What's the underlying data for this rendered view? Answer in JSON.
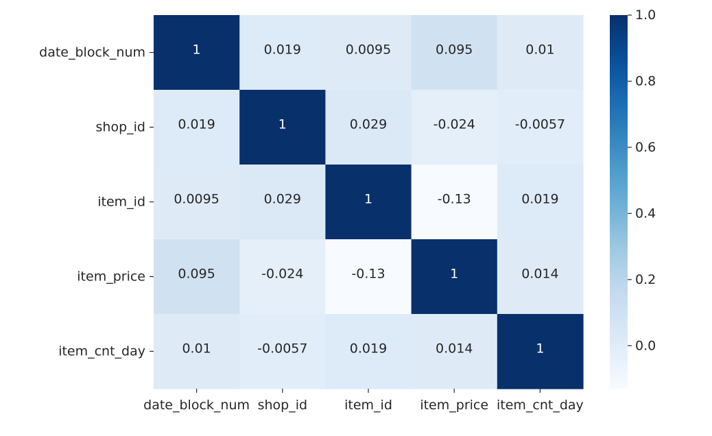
{
  "chart_data": {
    "type": "heatmap",
    "title": "",
    "xlabel": "",
    "ylabel": "",
    "rows": [
      "date_block_num",
      "shop_id",
      "item_id",
      "item_price",
      "item_cnt_day"
    ],
    "columns": [
      "date_block_num",
      "shop_id",
      "item_id",
      "item_price",
      "item_cnt_day"
    ],
    "values": [
      [
        1,
        0.019,
        0.0095,
        0.095,
        0.01
      ],
      [
        0.019,
        1,
        0.029,
        -0.024,
        -0.0057
      ],
      [
        0.0095,
        0.029,
        1,
        -0.13,
        0.019
      ],
      [
        0.095,
        -0.024,
        -0.13,
        1,
        0.014
      ],
      [
        0.01,
        -0.0057,
        0.019,
        0.014,
        1
      ]
    ],
    "annotations": [
      [
        "1",
        "0.019",
        "0.0095",
        "0.095",
        "0.01"
      ],
      [
        "0.019",
        "1",
        "0.029",
        "-0.024",
        "-0.0057"
      ],
      [
        "0.0095",
        "0.029",
        "1",
        "-0.13",
        "0.019"
      ],
      [
        "0.095",
        "-0.024",
        "-0.13",
        "1",
        "0.014"
      ],
      [
        "0.01",
        "-0.0057",
        "0.019",
        "0.014",
        "1"
      ]
    ],
    "colormap": "Blues",
    "colorbar": {
      "range": [
        -0.13,
        1.0
      ],
      "ticks": [
        0.0,
        0.2,
        0.4,
        0.6,
        0.8,
        1.0
      ],
      "tick_labels": [
        "0.0",
        "0.2",
        "0.4",
        "0.6",
        "0.8",
        "1.0"
      ]
    },
    "colors": {
      "high": "#08306b",
      "low": "#f7fbff",
      "text_dark": "#262626",
      "text_light": "#ffffff"
    }
  }
}
